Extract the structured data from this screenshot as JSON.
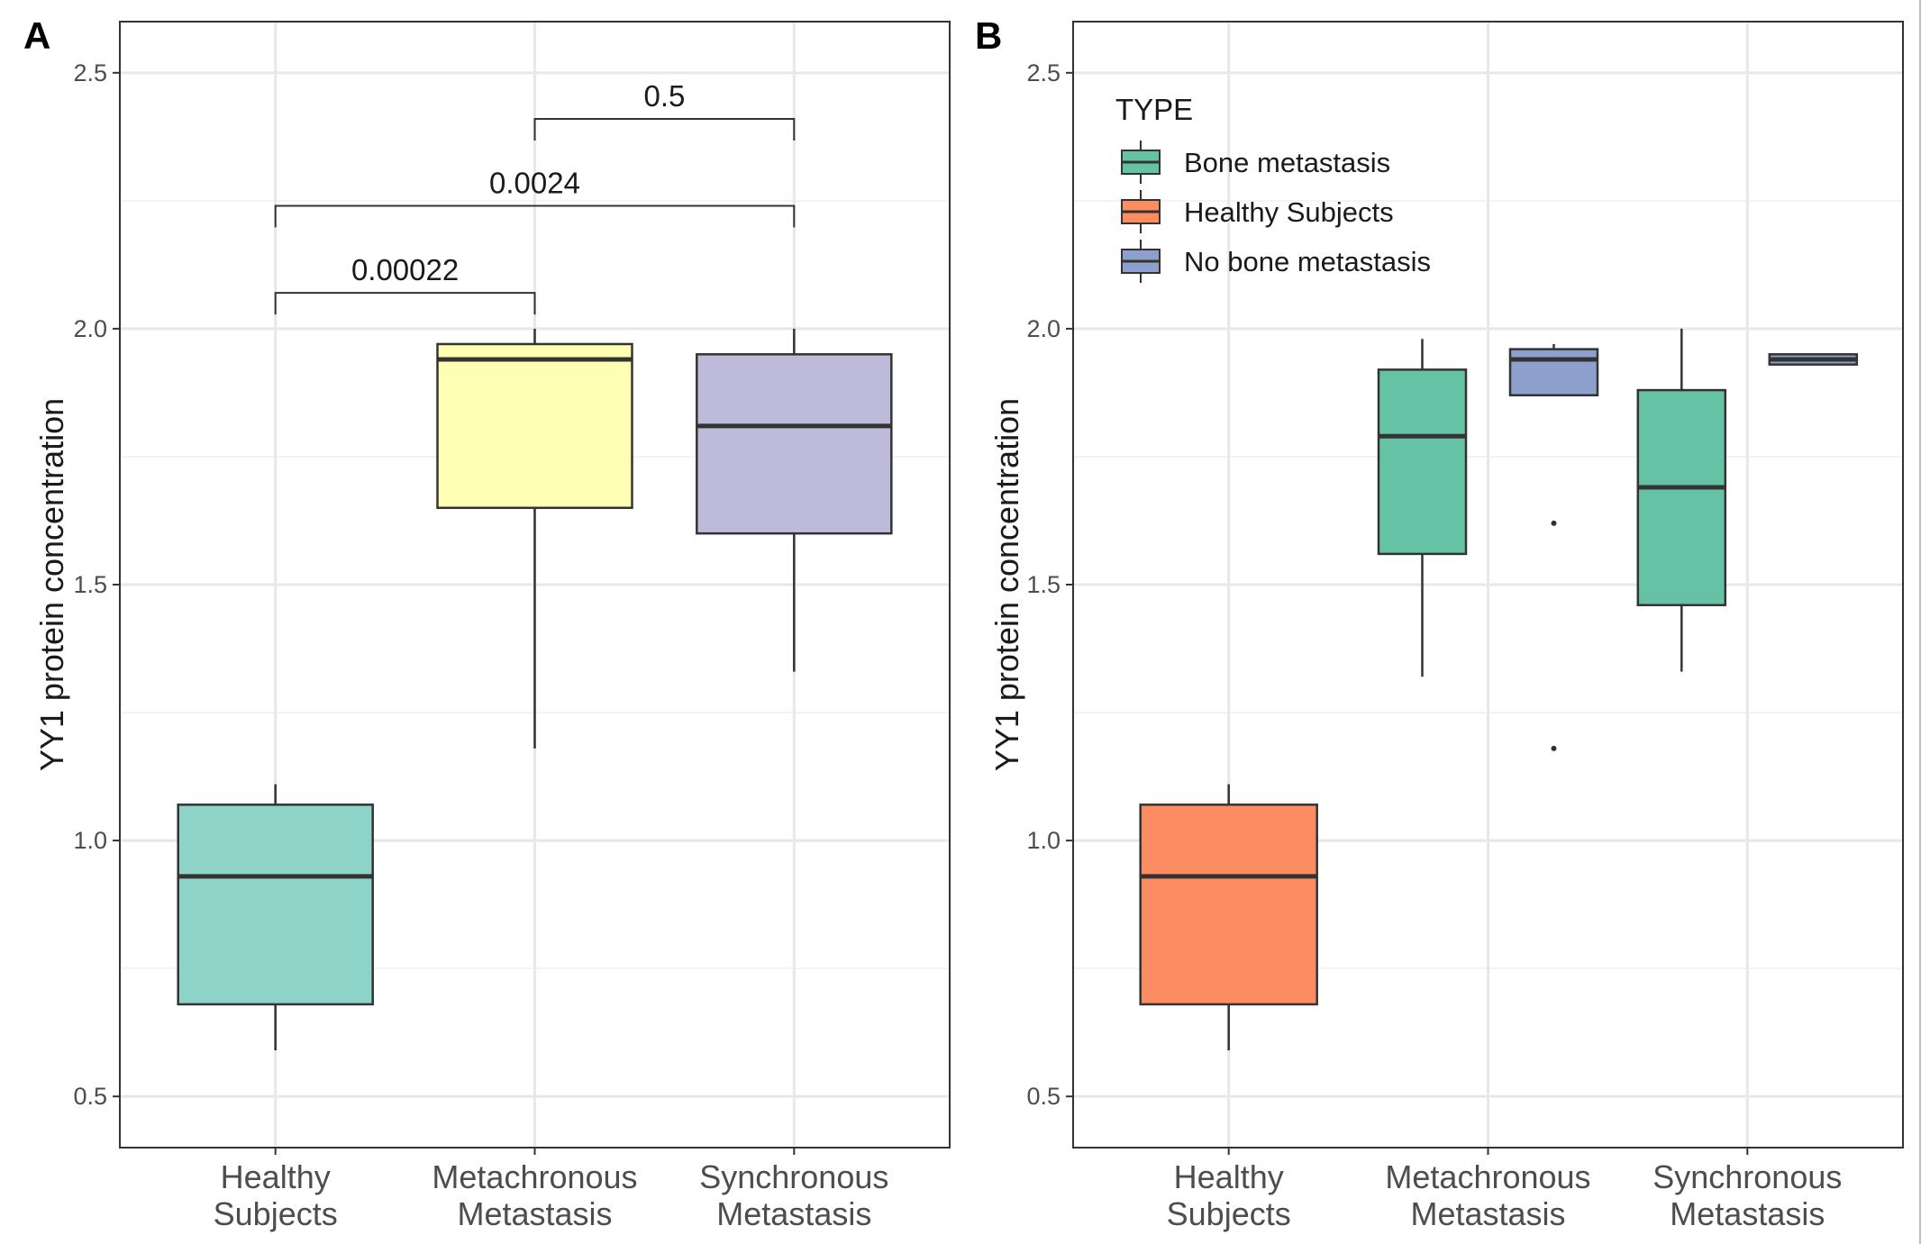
{
  "chart_data": [
    {
      "panel": "A",
      "type": "box",
      "title": "",
      "xlabel": "",
      "ylabel": "YY1 protein concentration",
      "ylim": [
        0.4,
        2.6
      ],
      "yticks": [
        "0.5",
        "1.0",
        "1.5",
        "2.0",
        "2.5"
      ],
      "ytick_values": [
        0.5,
        1.0,
        1.5,
        2.0,
        2.5
      ],
      "grid": true,
      "categories": [
        {
          "line1": "Healthy",
          "line2": "Subjects"
        },
        {
          "line1": "Metachronous",
          "line2": "Metastasis"
        },
        {
          "line1": "Synchronous",
          "line2": "Metastasis"
        }
      ],
      "boxes": [
        {
          "category_index": 0,
          "fill": "#8dd3c7",
          "whisker_low": 0.59,
          "q1": 0.68,
          "median": 0.93,
          "q3": 1.07,
          "whisker_high": 1.11,
          "outliers": []
        },
        {
          "category_index": 1,
          "fill": "#ffffb3",
          "whisker_low": 1.18,
          "q1": 1.65,
          "median": 1.94,
          "q3": 1.97,
          "whisker_high": 2.0,
          "outliers": []
        },
        {
          "category_index": 2,
          "fill": "#bebada",
          "whisker_low": 1.33,
          "q1": 1.6,
          "median": 1.81,
          "q3": 1.95,
          "whisker_high": 2.0,
          "outliers": []
        }
      ],
      "comparisons": [
        {
          "from": 0,
          "to": 1,
          "label": "0.00022",
          "y": 2.07
        },
        {
          "from": 0,
          "to": 2,
          "label": "0.0024",
          "y": 2.24
        },
        {
          "from": 1,
          "to": 2,
          "label": "0.5",
          "y": 2.41
        }
      ]
    },
    {
      "panel": "B",
      "type": "box",
      "title": "",
      "xlabel": "",
      "ylabel": "YY1 protein concentration",
      "ylim": [
        0.4,
        2.6
      ],
      "yticks": [
        "0.5",
        "1.0",
        "1.5",
        "2.0",
        "2.5"
      ],
      "ytick_values": [
        0.5,
        1.0,
        1.5,
        2.0,
        2.5
      ],
      "grid": true,
      "categories": [
        {
          "line1": "Healthy",
          "line2": "Subjects"
        },
        {
          "line1": "Metachronous",
          "line2": "Metastasis"
        },
        {
          "line1": "Synchronous",
          "line2": "Metastasis"
        }
      ],
      "legend": {
        "title": "TYPE",
        "position": "top-left",
        "items": [
          {
            "label": "Bone metastasis",
            "color": "#66c2a5"
          },
          {
            "label": "Healthy Subjects",
            "color": "#fc8d62"
          },
          {
            "label": "No bone metastasis",
            "color": "#8da0cb"
          }
        ]
      },
      "boxes": [
        {
          "category_index": 0,
          "group": "Healthy Subjects",
          "offset": 0,
          "fill": "#fc8d62",
          "whisker_low": 0.59,
          "q1": 0.68,
          "median": 0.93,
          "q3": 1.07,
          "whisker_high": 1.11,
          "outliers": []
        },
        {
          "category_index": 1,
          "group": "Bone metastasis",
          "offset": -1,
          "fill": "#66c2a5",
          "whisker_low": 1.32,
          "q1": 1.56,
          "median": 1.79,
          "q3": 1.92,
          "whisker_high": 1.98,
          "outliers": []
        },
        {
          "category_index": 1,
          "group": "No bone metastasis",
          "offset": 1,
          "fill": "#8da0cb",
          "whisker_low": 1.87,
          "q1": 1.87,
          "median": 1.94,
          "q3": 1.96,
          "whisker_high": 1.97,
          "outliers": [
            1.62,
            1.18
          ]
        },
        {
          "category_index": 2,
          "group": "Bone metastasis",
          "offset": -1,
          "fill": "#66c2a5",
          "whisker_low": 1.33,
          "q1": 1.46,
          "median": 1.69,
          "q3": 1.88,
          "whisker_high": 2.0,
          "outliers": []
        },
        {
          "category_index": 2,
          "group": "No bone metastasis",
          "offset": 1,
          "fill": "#8da0cb",
          "whisker_low": 1.93,
          "q1": 1.93,
          "median": 1.94,
          "q3": 1.95,
          "whisker_high": 1.95,
          "outliers": []
        }
      ]
    }
  ]
}
